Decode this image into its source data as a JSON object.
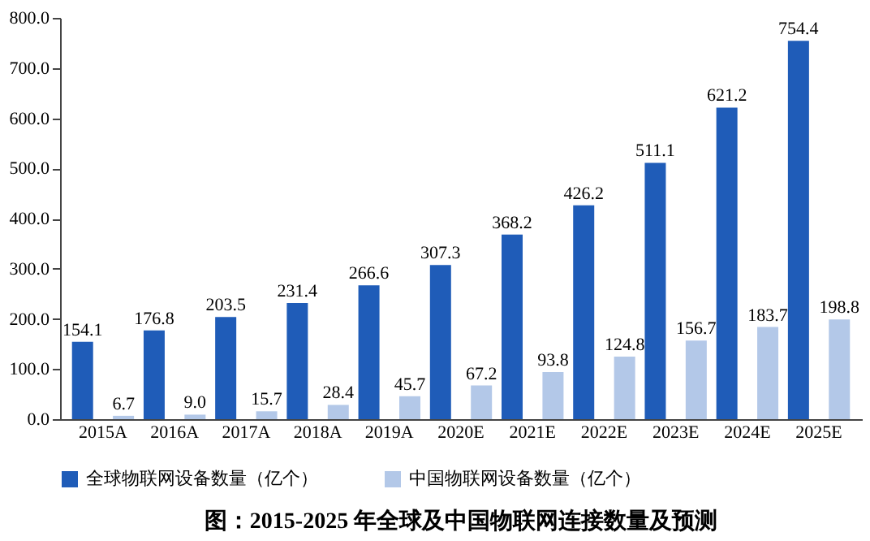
{
  "chart_data": {
    "type": "bar",
    "title": "图：2015-2025 年全球及中国物联网连接数量及预测",
    "categories": [
      "2015A",
      "2016A",
      "2017A",
      "2018A",
      "2019A",
      "2020E",
      "2021E",
      "2022E",
      "2023E",
      "2024E",
      "2025E"
    ],
    "series": [
      {
        "name": "全球物联网设备数量（亿个）",
        "color": "#1f5cb8",
        "values": [
          154.1,
          176.8,
          203.5,
          231.4,
          266.6,
          307.3,
          368.2,
          426.2,
          511.1,
          621.2,
          754.4
        ],
        "value_labels": [
          "154.1",
          "176.8",
          "203.5",
          "231.4",
          "266.6",
          "307.3",
          "368.2",
          "426.2",
          "511.1",
          "621.2",
          "754.4"
        ]
      },
      {
        "name": "中国物联网设备数量（亿个）",
        "color": "#b3c8e8",
        "values": [
          6.7,
          9.0,
          15.7,
          28.4,
          45.7,
          67.2,
          93.8,
          124.8,
          156.7,
          183.7,
          198.8
        ],
        "value_labels": [
          "6.7",
          "9.0",
          "15.7",
          "28.4",
          "45.7",
          "67.2",
          "93.8",
          "124.8",
          "156.7",
          "183.7",
          "198.8"
        ]
      }
    ],
    "ylim": [
      0,
      800
    ],
    "yticks": [
      {
        "value": 0,
        "label": "0.0"
      },
      {
        "value": 100,
        "label": "100.0"
      },
      {
        "value": 200,
        "label": "200.0"
      },
      {
        "value": 300,
        "label": "300.0"
      },
      {
        "value": 400,
        "label": "400.0"
      },
      {
        "value": 500,
        "label": "500.0"
      },
      {
        "value": 600,
        "label": "600.0"
      },
      {
        "value": 700,
        "label": "700.0"
      },
      {
        "value": 800,
        "label": "800.0"
      }
    ],
    "grid": false,
    "legend": "bottom"
  }
}
